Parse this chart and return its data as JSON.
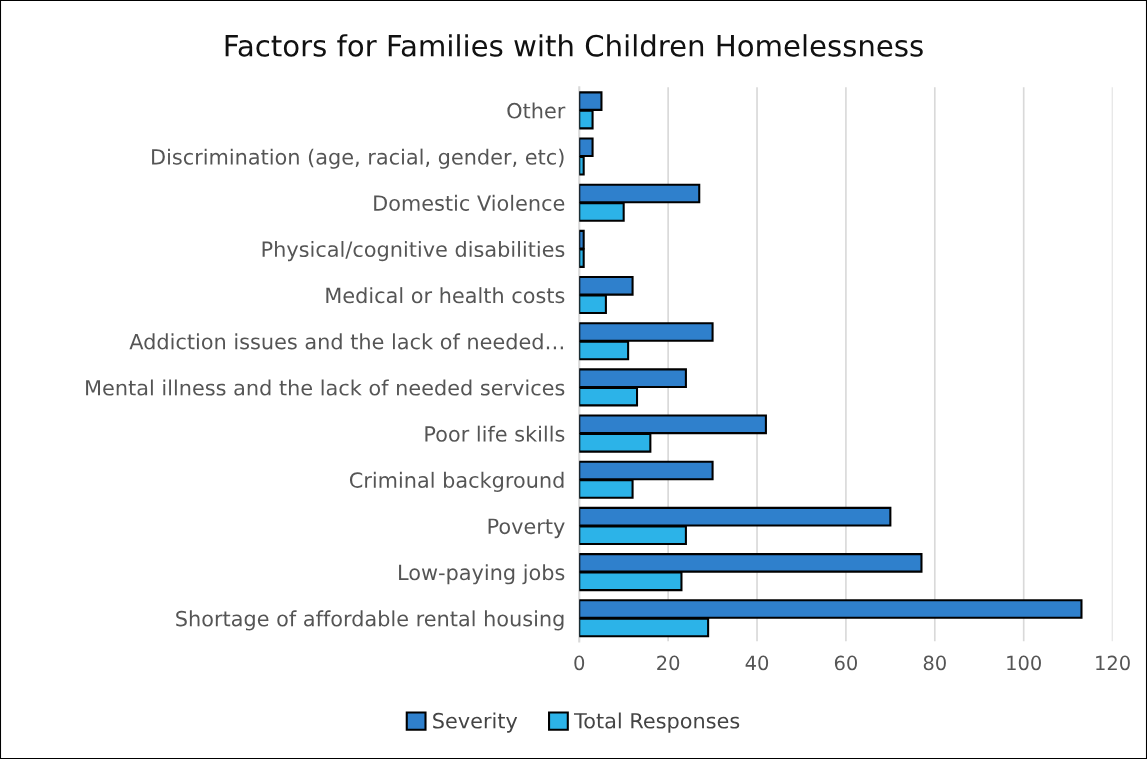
{
  "chart_data": {
    "type": "bar",
    "orientation": "horizontal",
    "title": "Factors for Families with Children Homelessness",
    "categories": [
      "Other",
      "Discrimination (age, racial, gender, etc)",
      "Domestic Violence",
      "Physical/cognitive disabilities",
      "Medical or health costs",
      "Addiction issues and the lack of needed…",
      "Mental illness and the lack of needed services",
      "Poor life skills",
      "Criminal background",
      "Poverty",
      "Low-paying jobs",
      "Shortage of affordable rental housing"
    ],
    "series": [
      {
        "name": "Severity",
        "color": "#2f80cc",
        "values": [
          5,
          3,
          27,
          1,
          12,
          30,
          24,
          42,
          30,
          70,
          77,
          113
        ]
      },
      {
        "name": "Total Responses",
        "color": "#2cb3e8",
        "values": [
          3,
          1,
          10,
          1,
          6,
          11,
          13,
          16,
          12,
          24,
          23,
          29
        ]
      }
    ],
    "xlim": [
      0,
      120
    ],
    "xticks": [
      0,
      20,
      40,
      60,
      80,
      100,
      120
    ],
    "grid": "x",
    "legend": "bottom"
  }
}
